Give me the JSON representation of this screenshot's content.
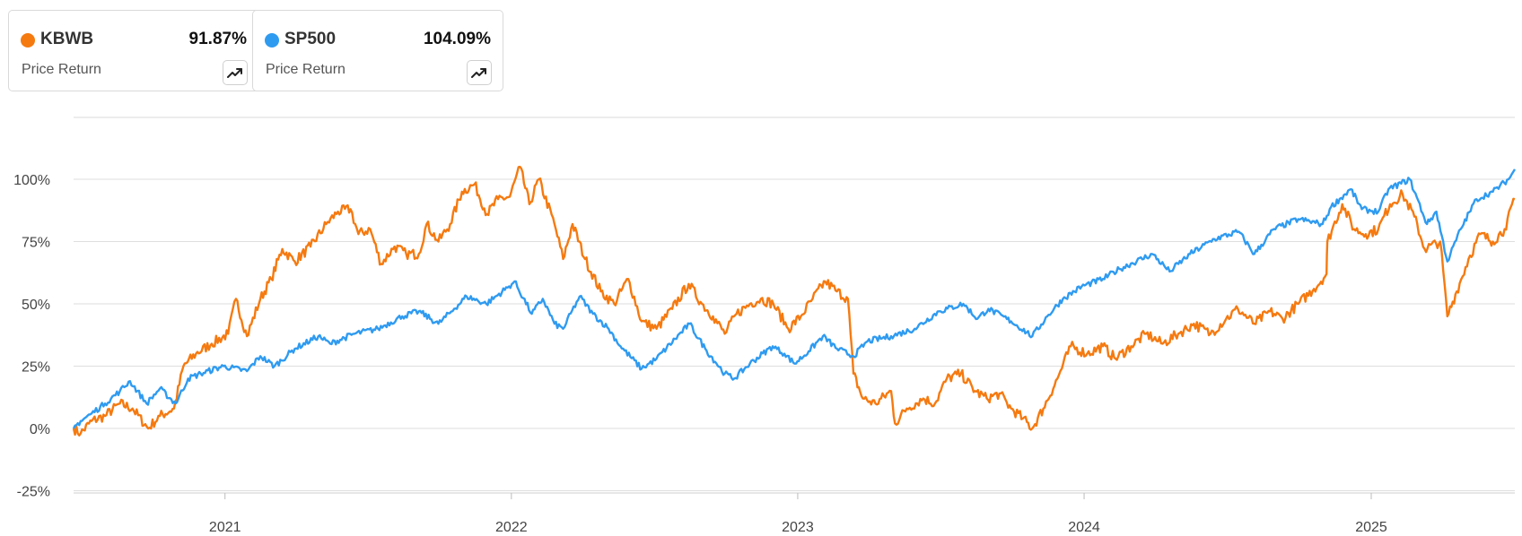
{
  "legend": [
    {
      "ticker": "KBWB",
      "value": "91.87%",
      "metric": "Price Return",
      "color": "#f57a10"
    },
    {
      "ticker": "SP500",
      "value": "104.09%",
      "metric": "Price Return",
      "color": "#2f9bf0"
    }
  ],
  "chart_data": {
    "type": "line",
    "x_ticks": [
      "2021",
      "2022",
      "2023",
      "2024",
      "2025"
    ],
    "y_ticks": [
      "100%",
      "75%",
      "50%",
      "25%",
      "0%",
      "-25%"
    ],
    "ylim": [
      -25,
      125
    ],
    "xlim": [
      "2020-06-22",
      "2025-07-03"
    ],
    "grid": true,
    "series": [
      {
        "name": "KBWB",
        "color": "#f57a10",
        "points": [
          [
            "2020-06-22",
            0
          ],
          [
            "2020-07-01",
            -2
          ],
          [
            "2020-07-15",
            3
          ],
          [
            "2020-08-01",
            5
          ],
          [
            "2020-08-20",
            10
          ],
          [
            "2020-09-05",
            8
          ],
          [
            "2020-09-25",
            0
          ],
          [
            "2020-10-10",
            5
          ],
          [
            "2020-10-28",
            8
          ],
          [
            "2020-11-09",
            25
          ],
          [
            "2020-11-25",
            30
          ],
          [
            "2020-12-15",
            34
          ],
          [
            "2021-01-05",
            38
          ],
          [
            "2021-01-15",
            52
          ],
          [
            "2021-01-29",
            37
          ],
          [
            "2021-02-15",
            52
          ],
          [
            "2021-03-01",
            60
          ],
          [
            "2021-03-15",
            72
          ],
          [
            "2021-03-31",
            67
          ],
          [
            "2021-04-20",
            73
          ],
          [
            "2021-05-10",
            82
          ],
          [
            "2021-05-25",
            87
          ],
          [
            "2021-06-10",
            88
          ],
          [
            "2021-06-20",
            78
          ],
          [
            "2021-07-05",
            80
          ],
          [
            "2021-07-19",
            66
          ],
          [
            "2021-08-05",
            73
          ],
          [
            "2021-08-20",
            70
          ],
          [
            "2021-09-05",
            70
          ],
          [
            "2021-09-15",
            82
          ],
          [
            "2021-09-30",
            75
          ],
          [
            "2021-10-15",
            82
          ],
          [
            "2021-10-30",
            95
          ],
          [
            "2021-11-15",
            98
          ],
          [
            "2021-12-01",
            86
          ],
          [
            "2021-12-15",
            92
          ],
          [
            "2021-12-30",
            93
          ],
          [
            "2022-01-12",
            105
          ],
          [
            "2022-01-24",
            90
          ],
          [
            "2022-02-05",
            100
          ],
          [
            "2022-02-25",
            82
          ],
          [
            "2022-03-08",
            68
          ],
          [
            "2022-03-20",
            82
          ],
          [
            "2022-04-05",
            68
          ],
          [
            "2022-04-25",
            55
          ],
          [
            "2022-05-12",
            50
          ],
          [
            "2022-05-30",
            60
          ],
          [
            "2022-06-16",
            43
          ],
          [
            "2022-07-05",
            40
          ],
          [
            "2022-07-25",
            48
          ],
          [
            "2022-08-15",
            58
          ],
          [
            "2022-09-01",
            50
          ],
          [
            "2022-09-15",
            45
          ],
          [
            "2022-09-30",
            38
          ],
          [
            "2022-10-15",
            46
          ],
          [
            "2022-11-01",
            50
          ],
          [
            "2022-11-15",
            52
          ],
          [
            "2022-12-01",
            50
          ],
          [
            "2022-12-20",
            40
          ],
          [
            "2023-01-05",
            45
          ],
          [
            "2023-01-20",
            52
          ],
          [
            "2023-02-05",
            59
          ],
          [
            "2023-02-20",
            55
          ],
          [
            "2023-03-06",
            52
          ],
          [
            "2023-03-13",
            22
          ],
          [
            "2023-03-25",
            12
          ],
          [
            "2023-04-10",
            10
          ],
          [
            "2023-04-30",
            15
          ],
          [
            "2023-05-05",
            2
          ],
          [
            "2023-05-20",
            8
          ],
          [
            "2023-06-10",
            12
          ],
          [
            "2023-06-25",
            10
          ],
          [
            "2023-07-10",
            20
          ],
          [
            "2023-07-28",
            22
          ],
          [
            "2023-08-15",
            15
          ],
          [
            "2023-08-30",
            12
          ],
          [
            "2023-09-15",
            14
          ],
          [
            "2023-09-30",
            8
          ],
          [
            "2023-10-15",
            4
          ],
          [
            "2023-10-27",
            0
          ],
          [
            "2023-11-10",
            8
          ],
          [
            "2023-11-28",
            20
          ],
          [
            "2023-12-15",
            33
          ],
          [
            "2024-01-05",
            30
          ],
          [
            "2024-01-25",
            33
          ],
          [
            "2024-02-10",
            28
          ],
          [
            "2024-03-01",
            33
          ],
          [
            "2024-03-20",
            38
          ],
          [
            "2024-04-10",
            34
          ],
          [
            "2024-04-30",
            38
          ],
          [
            "2024-05-20",
            42
          ],
          [
            "2024-06-10",
            38
          ],
          [
            "2024-06-30",
            44
          ],
          [
            "2024-07-15",
            48
          ],
          [
            "2024-08-05",
            42
          ],
          [
            "2024-08-25",
            47
          ],
          [
            "2024-09-10",
            44
          ],
          [
            "2024-09-30",
            50
          ],
          [
            "2024-10-20",
            56
          ],
          [
            "2024-11-05",
            62
          ],
          [
            "2024-11-06",
            75
          ],
          [
            "2024-11-25",
            90
          ],
          [
            "2024-12-10",
            80
          ],
          [
            "2024-12-25",
            78
          ],
          [
            "2025-01-10",
            80
          ],
          [
            "2025-01-25",
            90
          ],
          [
            "2025-02-10",
            94
          ],
          [
            "2025-02-25",
            85
          ],
          [
            "2025-03-10",
            72
          ],
          [
            "2025-03-30",
            75
          ],
          [
            "2025-04-08",
            45
          ],
          [
            "2025-04-20",
            55
          ],
          [
            "2025-05-05",
            68
          ],
          [
            "2025-05-20",
            78
          ],
          [
            "2025-06-05",
            75
          ],
          [
            "2025-06-20",
            80
          ],
          [
            "2025-07-03",
            92
          ]
        ]
      },
      {
        "name": "SP500",
        "color": "#2f9bf0",
        "points": [
          [
            "2020-06-22",
            0
          ],
          [
            "2020-07-01",
            3
          ],
          [
            "2020-07-15",
            6
          ],
          [
            "2020-08-01",
            10
          ],
          [
            "2020-08-20",
            15
          ],
          [
            "2020-09-02",
            19
          ],
          [
            "2020-09-23",
            10
          ],
          [
            "2020-10-10",
            16
          ],
          [
            "2020-10-30",
            10
          ],
          [
            "2020-11-15",
            20
          ],
          [
            "2020-12-01",
            22
          ],
          [
            "2020-12-30",
            25
          ],
          [
            "2021-01-29",
            23
          ],
          [
            "2021-02-15",
            29
          ],
          [
            "2021-03-05",
            25
          ],
          [
            "2021-03-31",
            32
          ],
          [
            "2021-04-30",
            37
          ],
          [
            "2021-05-15",
            34
          ],
          [
            "2021-06-15",
            38
          ],
          [
            "2021-07-15",
            40
          ],
          [
            "2021-08-15",
            45
          ],
          [
            "2021-09-05",
            47
          ],
          [
            "2021-09-30",
            42
          ],
          [
            "2021-10-20",
            48
          ],
          [
            "2021-11-05",
            53
          ],
          [
            "2021-11-30",
            50
          ],
          [
            "2021-12-29",
            57
          ],
          [
            "2022-01-05",
            59
          ],
          [
            "2022-01-27",
            46
          ],
          [
            "2022-02-10",
            52
          ],
          [
            "2022-02-25",
            42
          ],
          [
            "2022-03-08",
            40
          ],
          [
            "2022-03-29",
            53
          ],
          [
            "2022-04-15",
            46
          ],
          [
            "2022-05-05",
            40
          ],
          [
            "2022-05-20",
            33
          ],
          [
            "2022-06-16",
            24
          ],
          [
            "2022-07-05",
            28
          ],
          [
            "2022-08-16",
            42
          ],
          [
            "2022-09-05",
            32
          ],
          [
            "2022-09-30",
            22
          ],
          [
            "2022-10-12",
            20
          ],
          [
            "2022-11-01",
            26
          ],
          [
            "2022-11-30",
            33
          ],
          [
            "2022-12-15",
            30
          ],
          [
            "2022-12-28",
            26
          ],
          [
            "2023-01-15",
            31
          ],
          [
            "2023-02-02",
            37
          ],
          [
            "2023-02-20",
            32
          ],
          [
            "2023-03-13",
            29
          ],
          [
            "2023-03-31",
            35
          ],
          [
            "2023-04-30",
            37
          ],
          [
            "2023-05-30",
            40
          ],
          [
            "2023-06-30",
            47
          ],
          [
            "2023-07-31",
            50
          ],
          [
            "2023-08-18",
            44
          ],
          [
            "2023-09-01",
            48
          ],
          [
            "2023-09-30",
            43
          ],
          [
            "2023-10-27",
            37
          ],
          [
            "2023-11-15",
            45
          ],
          [
            "2023-12-05",
            52
          ],
          [
            "2023-12-29",
            57
          ],
          [
            "2024-01-25",
            60
          ],
          [
            "2024-02-15",
            64
          ],
          [
            "2024-03-28",
            70
          ],
          [
            "2024-04-19",
            63
          ],
          [
            "2024-05-15",
            70
          ],
          [
            "2024-06-15",
            76
          ],
          [
            "2024-07-16",
            79
          ],
          [
            "2024-08-05",
            70
          ],
          [
            "2024-08-30",
            80
          ],
          [
            "2024-09-30",
            84
          ],
          [
            "2024-10-31",
            82
          ],
          [
            "2024-11-11",
            89
          ],
          [
            "2024-12-06",
            96
          ],
          [
            "2024-12-20",
            88
          ],
          [
            "2025-01-10",
            87
          ],
          [
            "2025-01-23",
            96
          ],
          [
            "2025-02-19",
            100
          ],
          [
            "2025-03-13",
            82
          ],
          [
            "2025-03-25",
            87
          ],
          [
            "2025-04-08",
            67
          ],
          [
            "2025-04-25",
            80
          ],
          [
            "2025-05-15",
            92
          ],
          [
            "2025-06-05",
            95
          ],
          [
            "2025-06-25",
            100
          ],
          [
            "2025-07-03",
            104
          ]
        ]
      }
    ]
  }
}
